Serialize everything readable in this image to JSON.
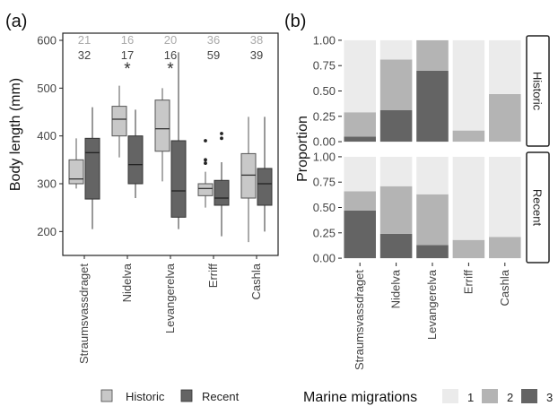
{
  "chart_data": [
    {
      "panel_label": "(a)",
      "type": "box",
      "ylabel": "Body length (mm)",
      "ylim": [
        150,
        615
      ],
      "yticks": [
        200,
        300,
        400,
        500,
        600
      ],
      "categories": [
        "Straumsvassdraget",
        "Nidelva",
        "Levangerelva",
        "Erriff",
        "Cashla"
      ],
      "series": [
        {
          "name": "Historic",
          "color": "#c8c8c8",
          "n": [
            "21",
            "16",
            "20",
            "36",
            "38"
          ],
          "boxes": [
            {
              "whisker_low": 290,
              "q1": 300,
              "median": 310,
              "q3": 350,
              "whisker_high": 395,
              "outliers": []
            },
            {
              "whisker_low": 355,
              "q1": 400,
              "median": 435,
              "q3": 462,
              "whisker_high": 505,
              "outliers": []
            },
            {
              "whisker_low": 305,
              "q1": 368,
              "median": 415,
              "q3": 475,
              "whisker_high": 500,
              "outliers": []
            },
            {
              "whisker_low": 250,
              "q1": 275,
              "median": 290,
              "q3": 300,
              "whisker_high": 325,
              "outliers": [
                343,
                350,
                390
              ]
            },
            {
              "whisker_low": 178,
              "q1": 270,
              "median": 318,
              "q3": 363,
              "whisker_high": 440,
              "outliers": []
            }
          ]
        },
        {
          "name": "Recent",
          "color": "#646464",
          "n": [
            "32",
            "17",
            "16",
            "59",
            "39"
          ],
          "boxes": [
            {
              "whisker_low": 205,
              "q1": 268,
              "median": 365,
              "q3": 395,
              "whisker_high": 460,
              "outliers": []
            },
            {
              "whisker_low": 270,
              "q1": 300,
              "median": 340,
              "q3": 400,
              "whisker_high": 455,
              "outliers": []
            },
            {
              "whisker_low": 205,
              "q1": 230,
              "median": 285,
              "q3": 390,
              "whisker_high": 575,
              "outliers": []
            },
            {
              "whisker_low": 190,
              "q1": 255,
              "median": 270,
              "q3": 307,
              "whisker_high": 345,
              "outliers": [
                395,
                405
              ]
            },
            {
              "whisker_low": 200,
              "q1": 255,
              "median": 300,
              "q3": 332,
              "whisker_high": 440,
              "outliers": []
            }
          ]
        }
      ],
      "significance_marker": "*",
      "significant": [
        false,
        true,
        true,
        false,
        false
      ],
      "legend": {
        "position": "bottom",
        "items": [
          "Historic",
          "Recent"
        ]
      }
    },
    {
      "panel_label": "(b)",
      "type": "stacked_bar",
      "ylabel": "Proportion",
      "ylim": [
        0,
        1
      ],
      "yticks": [
        "0.00",
        "0.25",
        "0.50",
        "0.75",
        "1.00"
      ],
      "categories": [
        "Straumsvassdraget",
        "Nidelva",
        "Levangerelva",
        "Erriff",
        "Cashla"
      ],
      "facets": [
        {
          "name": "Historic",
          "series": [
            {
              "name": "3",
              "values": [
                0.05,
                0.31,
                0.7,
                0.0,
                0.0
              ]
            },
            {
              "name": "2",
              "values": [
                0.24,
                0.5,
                0.3,
                0.11,
                0.47
              ]
            },
            {
              "name": "1",
              "values": [
                0.71,
                0.19,
                0.0,
                0.89,
                0.53
              ]
            }
          ]
        },
        {
          "name": "Recent",
          "series": [
            {
              "name": "3",
              "values": [
                0.47,
                0.24,
                0.13,
                0.0,
                0.0
              ]
            },
            {
              "name": "2",
              "values": [
                0.19,
                0.47,
                0.5,
                0.18,
                0.21
              ]
            },
            {
              "name": "1",
              "values": [
                0.34,
                0.29,
                0.37,
                0.82,
                0.79
              ]
            }
          ]
        }
      ],
      "colors": {
        "1": "#ebebeb",
        "2": "#b4b4b4",
        "3": "#646464"
      },
      "legend": {
        "title": "Marine migrations",
        "position": "bottom",
        "items": [
          "1",
          "2",
          "3"
        ]
      }
    }
  ]
}
